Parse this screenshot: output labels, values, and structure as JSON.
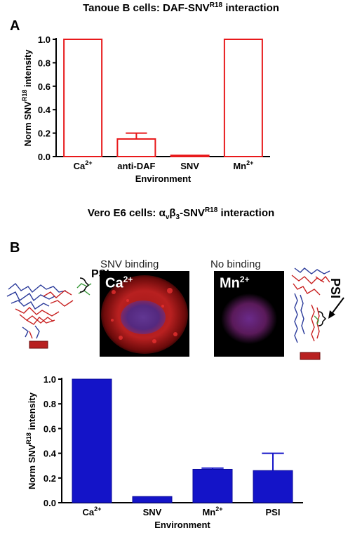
{
  "titles": {
    "panel_a_title": "Tanoue B cells: DAF-SNV",
    "panel_a_title_sup": "R18",
    "panel_a_title_suffix": " interaction",
    "panel_b_title_prefix": "Vero E6 cells: ",
    "panel_b_title_alpha": "α",
    "panel_b_title_v": "v",
    "panel_b_title_beta": "β",
    "panel_b_title_3": "3",
    "panel_b_title_mid": "-SNV",
    "panel_b_title_sup": "R18",
    "panel_b_title_suffix": " interaction"
  },
  "panel_labels": {
    "a": "A",
    "b": "B"
  },
  "images": {
    "left_caption": "SNV binding",
    "right_caption": "No binding",
    "left_psi": "PSI",
    "right_psi": "PSI",
    "left_ion": "Ca",
    "left_ion_sup": "2+",
    "right_ion": "Mn",
    "right_ion_sup": "2+"
  },
  "colors": {
    "chart_a": "#e8191b",
    "chart_b_fill": "#1414c8",
    "chart_b_stroke": "#0a0a9a",
    "cell_red": "#d42020",
    "cell_blue": "#3a2a9a",
    "cell_magenta": "#6a1a6a"
  },
  "chart_data": [
    {
      "type": "bar",
      "categories": [
        "Ca2+",
        "anti-DAF",
        "SNV",
        "Mn2+"
      ],
      "category_labels": [
        {
          "base": "Ca",
          "sup": "2+"
        },
        {
          "base": "anti-DAF",
          "sup": ""
        },
        {
          "base": "SNV",
          "sup": ""
        },
        {
          "base": "Mn",
          "sup": "2+"
        }
      ],
      "values": [
        1.0,
        0.15,
        0.01,
        1.0
      ],
      "errors": [
        0.0,
        0.05,
        0.0,
        0.0
      ],
      "fill": "none",
      "ylabel_prefix": "Norm SNV",
      "ylabel_sup": "R18",
      "ylabel_suffix": " intensity",
      "xlabel": "Environment",
      "ylim": [
        0,
        1.0
      ],
      "yticks": [
        "0.0",
        "0.2",
        "0.4",
        "0.6",
        "0.8",
        "1.0"
      ]
    },
    {
      "type": "bar",
      "categories": [
        "Ca2+",
        "SNV",
        "Mn2+",
        "PSI"
      ],
      "category_labels": [
        {
          "base": "Ca",
          "sup": "2+"
        },
        {
          "base": "SNV",
          "sup": ""
        },
        {
          "base": "Mn",
          "sup": "2+"
        },
        {
          "base": "PSI",
          "sup": ""
        }
      ],
      "values": [
        1.0,
        0.05,
        0.27,
        0.26
      ],
      "errors": [
        0.0,
        0.0,
        0.01,
        0.14
      ],
      "fill": "solid",
      "ylabel_prefix": "Norm SNV",
      "ylabel_sup": "R18",
      "ylabel_suffix": " intensity",
      "xlabel": "Environment",
      "ylim": [
        0,
        1.0
      ],
      "yticks": [
        "0.0",
        "0.2",
        "0.4",
        "0.6",
        "0.8",
        "1.0"
      ]
    }
  ]
}
